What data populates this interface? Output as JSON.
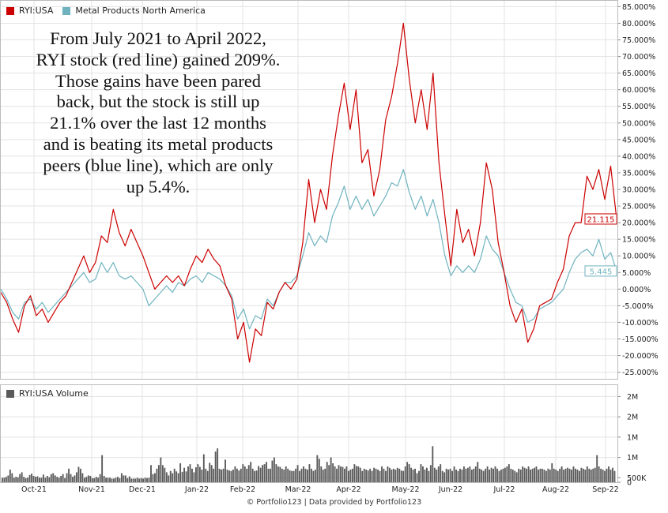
{
  "annotation": "From July 2021 to April 2022,\nRYI stock (red line) gained 209%.\nThose gains have been pared\nback, but the stock is still up\n21.1% over the last 12 months\nand is beating its metal products\npeers (blue line), which are only\nup 5.4%.",
  "credit": "© Portfolio123 | Data provided by Portfolio123",
  "colors": {
    "ryi": "#cc0000",
    "peers": "#6fb3bf",
    "volume": "#5a5a5a",
    "grid": "#e3e3e3",
    "frame": "#bbbbbb"
  },
  "chart_data": [
    {
      "type": "line",
      "title": "",
      "xlabel": "",
      "ylabel": "",
      "x_ticks": [
        "Oct-21",
        "Nov-21",
        "Dec-21",
        "Jan-22",
        "Feb-22",
        "Mar-22",
        "Apr-22",
        "May-22",
        "Jun-22",
        "Jul-22",
        "Aug-22",
        "Sep-22"
      ],
      "y_ticks": [
        "85.000%",
        "80.000%",
        "75.000%",
        "70.000%",
        "65.000%",
        "60.000%",
        "55.000%",
        "50.000%",
        "45.000%",
        "40.000%",
        "35.000%",
        "30.000%",
        "25.000%",
        "20.000%",
        "15.000%",
        "10.000%",
        "5.000%",
        "0.000%",
        "-5.000%",
        "-10.000%",
        "-15.000%",
        "-20.000%",
        "-25.000%"
      ],
      "ylim": [
        -27,
        87
      ],
      "grid": true,
      "legend": "top-left",
      "series": [
        {
          "name": "RYI:USA",
          "end_label": "21.115",
          "values": [
            [
              0,
              -1
            ],
            [
              2,
              -4
            ],
            [
              4,
              -9
            ],
            [
              6,
              -13
            ],
            [
              8,
              -5
            ],
            [
              10,
              -2
            ],
            [
              12,
              -8
            ],
            [
              14,
              -6
            ],
            [
              16,
              -10
            ],
            [
              18,
              -7
            ],
            [
              20,
              -4
            ],
            [
              22,
              -2
            ],
            [
              24,
              2
            ],
            [
              26,
              6
            ],
            [
              28,
              10
            ],
            [
              30,
              5
            ],
            [
              32,
              8
            ],
            [
              34,
              16
            ],
            [
              36,
              14
            ],
            [
              38,
              24
            ],
            [
              40,
              17
            ],
            [
              42,
              13
            ],
            [
              44,
              18
            ],
            [
              46,
              14
            ],
            [
              48,
              10
            ],
            [
              50,
              5
            ],
            [
              52,
              0
            ],
            [
              54,
              2
            ],
            [
              56,
              4
            ],
            [
              58,
              2
            ],
            [
              60,
              4
            ],
            [
              62,
              1
            ],
            [
              64,
              6
            ],
            [
              66,
              10
            ],
            [
              68,
              8
            ],
            [
              70,
              12
            ],
            [
              72,
              9
            ],
            [
              74,
              7
            ],
            [
              76,
              1
            ],
            [
              78,
              -3
            ],
            [
              80,
              -15
            ],
            [
              82,
              -10
            ],
            [
              84,
              -22
            ],
            [
              86,
              -12
            ],
            [
              88,
              -14
            ],
            [
              90,
              -4
            ],
            [
              92,
              -6
            ],
            [
              94,
              -1
            ],
            [
              96,
              2
            ],
            [
              98,
              0
            ],
            [
              100,
              3
            ],
            [
              102,
              14
            ],
            [
              104,
              33
            ],
            [
              106,
              20
            ],
            [
              108,
              30
            ],
            [
              110,
              24
            ],
            [
              112,
              40
            ],
            [
              114,
              52
            ],
            [
              116,
              62
            ],
            [
              118,
              48
            ],
            [
              120,
              60
            ],
            [
              122,
              38
            ],
            [
              124,
              42
            ],
            [
              126,
              28
            ],
            [
              128,
              36
            ],
            [
              130,
              51
            ],
            [
              132,
              58
            ],
            [
              134,
              68
            ],
            [
              136,
              80
            ],
            [
              138,
              63
            ],
            [
              140,
              50
            ],
            [
              142,
              60
            ],
            [
              144,
              48
            ],
            [
              146,
              65
            ],
            [
              148,
              38
            ],
            [
              150,
              22
            ],
            [
              152,
              7
            ],
            [
              154,
              24
            ],
            [
              156,
              14
            ],
            [
              158,
              18
            ],
            [
              160,
              10
            ],
            [
              162,
              20
            ],
            [
              164,
              38
            ],
            [
              166,
              30
            ],
            [
              168,
              14
            ],
            [
              170,
              5
            ],
            [
              172,
              -5
            ],
            [
              174,
              -10
            ],
            [
              176,
              -6
            ],
            [
              178,
              -16
            ],
            [
              180,
              -12
            ],
            [
              182,
              -5
            ],
            [
              184,
              -4
            ],
            [
              186,
              -3
            ],
            [
              188,
              2
            ],
            [
              190,
              6
            ],
            [
              192,
              16
            ],
            [
              194,
              20
            ],
            [
              196,
              20
            ],
            [
              198,
              34
            ],
            [
              200,
              30
            ],
            [
              202,
              36
            ],
            [
              204,
              27
            ],
            [
              206,
              37
            ],
            [
              208,
              21.1
            ]
          ]
        },
        {
          "name": "Metal Products North America",
          "end_label": "5.445",
          "values": [
            [
              0,
              0
            ],
            [
              2,
              -3
            ],
            [
              4,
              -7
            ],
            [
              6,
              -9
            ],
            [
              8,
              -4
            ],
            [
              10,
              -3
            ],
            [
              12,
              -6
            ],
            [
              14,
              -4
            ],
            [
              16,
              -7
            ],
            [
              18,
              -5
            ],
            [
              20,
              -3
            ],
            [
              22,
              -1
            ],
            [
              24,
              1
            ],
            [
              26,
              3
            ],
            [
              28,
              5
            ],
            [
              30,
              2
            ],
            [
              32,
              3
            ],
            [
              34,
              8
            ],
            [
              36,
              5
            ],
            [
              38,
              8
            ],
            [
              40,
              4
            ],
            [
              42,
              3
            ],
            [
              44,
              4
            ],
            [
              46,
              2
            ],
            [
              48,
              0
            ],
            [
              50,
              -5
            ],
            [
              52,
              -3
            ],
            [
              54,
              -1
            ],
            [
              56,
              1
            ],
            [
              58,
              -1
            ],
            [
              60,
              2
            ],
            [
              62,
              1
            ],
            [
              64,
              3
            ],
            [
              66,
              4
            ],
            [
              68,
              2
            ],
            [
              70,
              5
            ],
            [
              72,
              4
            ],
            [
              74,
              3
            ],
            [
              76,
              1
            ],
            [
              78,
              -2
            ],
            [
              80,
              -9
            ],
            [
              82,
              -6
            ],
            [
              84,
              -12
            ],
            [
              86,
              -8
            ],
            [
              88,
              -9
            ],
            [
              90,
              -3
            ],
            [
              92,
              -5
            ],
            [
              94,
              -1
            ],
            [
              96,
              2
            ],
            [
              98,
              2
            ],
            [
              100,
              4
            ],
            [
              102,
              10
            ],
            [
              104,
              17
            ],
            [
              106,
              13
            ],
            [
              108,
              16
            ],
            [
              110,
              14
            ],
            [
              112,
              22
            ],
            [
              114,
              26
            ],
            [
              116,
              31
            ],
            [
              118,
              24
            ],
            [
              120,
              28
            ],
            [
              122,
              24
            ],
            [
              124,
              27
            ],
            [
              126,
              22
            ],
            [
              128,
              25
            ],
            [
              130,
              28
            ],
            [
              132,
              32
            ],
            [
              134,
              31
            ],
            [
              136,
              36
            ],
            [
              138,
              29
            ],
            [
              140,
              24
            ],
            [
              142,
              28
            ],
            [
              144,
              22
            ],
            [
              146,
              27
            ],
            [
              148,
              20
            ],
            [
              150,
              10
            ],
            [
              152,
              4
            ],
            [
              154,
              7
            ],
            [
              156,
              5
            ],
            [
              158,
              7
            ],
            [
              160,
              5
            ],
            [
              162,
              9
            ],
            [
              164,
              16
            ],
            [
              166,
              12
            ],
            [
              168,
              10
            ],
            [
              170,
              5
            ],
            [
              172,
              0
            ],
            [
              174,
              -4
            ],
            [
              176,
              -5
            ],
            [
              178,
              -10
            ],
            [
              180,
              -9
            ],
            [
              182,
              -6
            ],
            [
              184,
              -5
            ],
            [
              186,
              -4
            ],
            [
              188,
              -2
            ],
            [
              190,
              0
            ],
            [
              192,
              5
            ],
            [
              194,
              9
            ],
            [
              196,
              11
            ],
            [
              198,
              12
            ],
            [
              200,
              10
            ],
            [
              202,
              15
            ],
            [
              204,
              9
            ],
            [
              206,
              11
            ],
            [
              208,
              5.445
            ]
          ]
        }
      ]
    },
    {
      "type": "bar",
      "title": "",
      "legend": "top-left",
      "series": [
        {
          "name": "RYI:USA Volume"
        }
      ],
      "y_ticks": [
        "2M",
        "2M",
        "1M",
        "1M",
        "500K",
        "0"
      ],
      "ylim": [
        0,
        2.1
      ],
      "values": [
        0.1,
        0.1,
        0.12,
        0.15,
        0.28,
        0.2,
        0.1,
        0.12,
        0.11,
        0.18,
        0.22,
        0.12,
        0.09,
        0.1,
        0.16,
        0.19,
        0.14,
        0.12,
        0.13,
        0.1,
        0.1,
        0.17,
        0.1,
        0.14,
        0.11,
        0.18,
        0.2,
        0.15,
        0.12,
        0.1,
        0.14,
        0.18,
        0.09,
        0.2,
        0.3,
        0.18,
        0.12,
        0.15,
        0.22,
        0.34,
        0.3,
        0.2,
        0.1,
        0.12,
        0.15,
        0.14,
        0.09,
        0.09,
        0.12,
        0.1,
        0.18,
        0.6,
        0.14,
        0.1,
        0.1,
        0.1,
        0.08,
        0.08,
        0.1,
        0.12,
        0.09,
        0.2,
        0.15,
        0.15,
        0.09,
        0.13,
        0.08,
        0.08,
        0.08,
        0.1,
        0.08,
        0.09,
        0.08,
        0.1,
        0.09,
        0.1,
        0.38,
        0.18,
        0.2,
        0.3,
        0.38,
        0.55,
        0.38,
        0.32,
        0.22,
        0.15,
        0.25,
        0.2,
        0.3,
        0.24,
        0.2,
        0.42,
        0.23,
        0.32,
        0.24,
        0.35,
        0.4,
        0.3,
        0.22,
        0.33,
        0.4,
        0.34,
        0.28,
        0.62,
        0.3,
        0.25,
        0.43,
        0.38,
        0.3,
        0.68,
        0.75,
        0.3,
        0.28,
        0.3,
        0.5,
        0.28,
        0.26,
        0.25,
        0.28,
        0.35,
        0.3,
        0.26,
        0.3,
        0.4,
        0.35,
        0.3,
        0.38,
        0.45,
        0.3,
        0.25,
        0.26,
        0.36,
        0.32,
        0.38,
        0.4,
        0.45,
        0.3,
        0.3,
        0.48,
        0.55,
        0.4,
        0.35,
        0.34,
        0.3,
        0.28,
        0.35,
        0.3,
        0.26,
        0.25,
        0.25,
        0.3,
        0.38,
        0.25,
        0.3,
        0.35,
        0.3,
        0.28,
        0.4,
        0.3,
        0.25,
        0.28,
        0.6,
        0.52,
        0.35,
        0.28,
        0.3,
        0.45,
        0.38,
        0.55,
        0.42,
        0.35,
        0.3,
        0.38,
        0.35,
        0.34,
        0.3,
        0.35,
        0.25,
        0.28,
        0.3,
        0.4,
        0.36,
        0.35,
        0.32,
        0.25,
        0.3,
        0.28,
        0.26,
        0.3,
        0.25,
        0.32,
        0.3,
        0.28,
        0.25,
        0.35,
        0.3,
        0.25,
        0.35,
        0.32,
        0.28,
        0.3,
        0.28,
        0.32,
        0.3,
        0.26,
        0.25,
        0.35,
        0.45,
        0.4,
        0.32,
        0.28,
        0.3,
        0.2,
        0.25,
        0.4,
        0.35,
        0.28,
        0.32,
        0.25,
        0.38,
        0.8,
        0.32,
        0.28,
        0.35,
        0.4,
        0.25,
        0.22,
        0.3,
        0.28,
        0.3,
        0.25,
        0.35,
        0.28,
        0.25,
        0.3,
        0.28,
        0.35,
        0.3,
        0.32,
        0.35,
        0.28,
        0.3,
        0.35,
        0.45,
        0.3,
        0.28,
        0.25,
        0.3,
        0.35,
        0.28,
        0.32,
        0.3,
        0.35,
        0.3,
        0.25,
        0.28,
        0.3,
        0.32,
        0.35,
        0.4,
        0.3,
        0.28,
        0.25,
        0.22,
        0.3,
        0.28,
        0.35,
        0.32,
        0.3,
        0.35,
        0.28,
        0.3,
        0.32,
        0.35,
        0.28,
        0.3,
        0.3,
        0.28,
        0.25,
        0.3,
        0.28,
        0.42,
        0.3,
        0.28,
        0.25,
        0.3,
        0.35,
        0.28,
        0.3,
        0.32,
        0.3,
        0.28,
        0.35,
        0.3,
        0.28,
        0.25,
        0.32,
        0.3,
        0.28,
        0.35,
        0.3,
        0.28,
        0.3,
        0.32,
        0.6,
        0.35,
        0.3,
        0.28,
        0.25,
        0.3,
        0.35,
        0.28,
        0.32,
        0.25
      ]
    }
  ]
}
